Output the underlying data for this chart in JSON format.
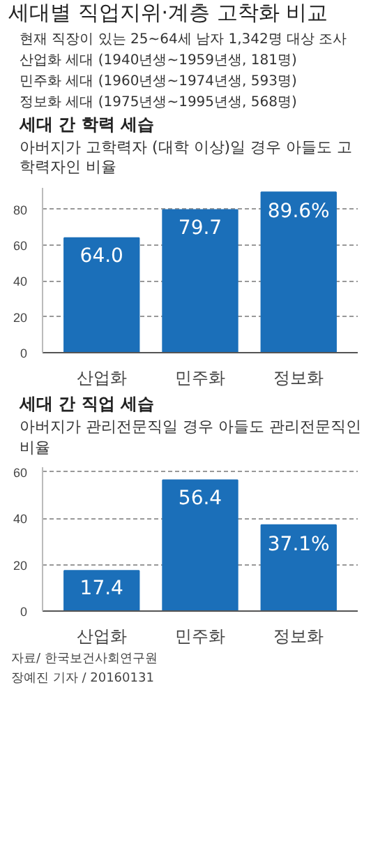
{
  "chart_data": [
    {
      "type": "other",
      "title": "세대별 직업지위·계층 고착화 비교",
      "annotations": [
        "현재 직장이 있는 25~64세 남자 1,342명 대상 조사",
        "산업화 세대 (1940년생~1959년생, 181명)",
        "민주화 세대 (1960년생~1974년생, 593명)",
        "정보화 세대 (1975년생~1995년생, 568명)"
      ]
    },
    {
      "type": "bar",
      "title": "세대 간 학력 세습",
      "subtitle": "아버지가 고학력자 (대학 이상)일 경우 아들도 고학력자인 비율",
      "categories": [
        "산업화",
        "민주화",
        "정보화"
      ],
      "values": [
        64.0,
        79.7,
        89.6
      ],
      "value_labels": [
        "64.0",
        "79.7",
        "89.6%"
      ],
      "color": "#1b6fb9",
      "ylim": [
        0,
        92
      ],
      "yticks": [
        0,
        20,
        40,
        60,
        80
      ],
      "grid": "y"
    },
    {
      "type": "bar",
      "title": "세대 간 직업 세습",
      "subtitle": "아버지가 관리전문직일 경우 아들도 관리전문직인 비율",
      "categories": [
        "산업화",
        "민주화",
        "정보화"
      ],
      "values": [
        17.4,
        56.4,
        37.1
      ],
      "value_labels": [
        "17.4",
        "56.4",
        "37.1%"
      ],
      "color": "#1b6fb9",
      "ylim": [
        0,
        62
      ],
      "yticks": [
        0,
        20,
        40,
        60
      ],
      "grid": "y",
      "annotations": [
        "자료/ 한국보건사회연구원",
        "장예진 기자 / 20160131"
      ]
    }
  ]
}
